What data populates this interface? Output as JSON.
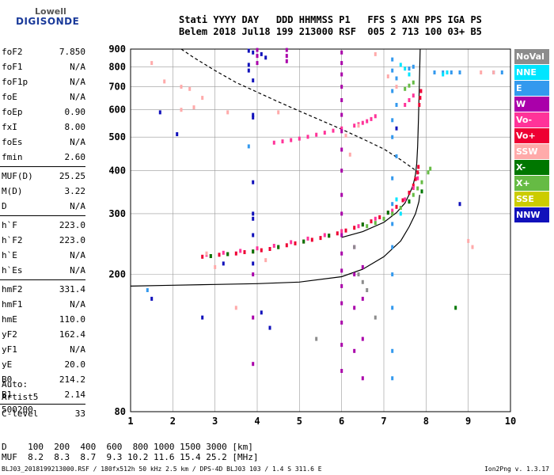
{
  "logo": {
    "line1": "Lowell",
    "line2": "DIGISONDE"
  },
  "header": {
    "line1": "Stati YYYY DAY   DDD HHMMSS P1   FFS S AXN PPS IGA PS",
    "line2": "Belem 2018 Jul18 199 213000 RSF  005 2 713 100 03+ B5"
  },
  "params": [
    {
      "group": [
        {
          "label": "foF2",
          "value": "7.850"
        },
        {
          "label": "foF1",
          "value": "N/A"
        },
        {
          "label": "foF1p",
          "value": "N/A"
        },
        {
          "label": "foE",
          "value": "N/A"
        },
        {
          "label": "foEp",
          "value": "0.90"
        },
        {
          "label": "fxI",
          "value": "8.00"
        },
        {
          "label": "foEs",
          "value": "N/A"
        },
        {
          "label": "fmin",
          "value": "2.60"
        }
      ]
    },
    {
      "group": [
        {
          "label": "MUF(D)",
          "value": "25.25"
        },
        {
          "label": "M(D)",
          "value": "3.22"
        },
        {
          "label": "D",
          "value": "N/A"
        }
      ]
    },
    {
      "group": [
        {
          "label": "h`F",
          "value": "223.0"
        },
        {
          "label": "h`F2",
          "value": "223.0"
        },
        {
          "label": "h`E",
          "value": "N/A"
        },
        {
          "label": "h`Es",
          "value": "N/A"
        }
      ]
    },
    {
      "group": [
        {
          "label": "hmF2",
          "value": "331.4"
        },
        {
          "label": "hmF1",
          "value": "N/A"
        },
        {
          "label": "hmE",
          "value": "110.0"
        },
        {
          "label": "yF2",
          "value": "162.4"
        },
        {
          "label": "yF1",
          "value": "N/A"
        },
        {
          "label": "yE",
          "value": "20.0"
        },
        {
          "label": "B0",
          "value": "214.2"
        },
        {
          "label": "B1",
          "value": "2.14"
        }
      ]
    },
    {
      "group": [
        {
          "label": "C-level",
          "value": "33"
        }
      ]
    }
  ],
  "auto": {
    "line1": "Auto:",
    "line2": "Artist5",
    "line3": "500200"
  },
  "legend": [
    {
      "name": "NoVal",
      "color": "#8c8c8c"
    },
    {
      "name": "NNE",
      "color": "#00e5ff"
    },
    {
      "name": "E",
      "color": "#3399ee"
    },
    {
      "name": "W",
      "color": "#aa00aa"
    },
    {
      "name": "Vo-",
      "color": "#ff3399"
    },
    {
      "name": "Vo+",
      "color": "#ee0033"
    },
    {
      "name": "SSW",
      "color": "#ffaaaa"
    },
    {
      "name": "X-",
      "color": "#007700"
    },
    {
      "name": "X+",
      "color": "#66bb44"
    },
    {
      "name": "SSE",
      "color": "#cccc00"
    },
    {
      "name": "NNW",
      "color": "#1111bb"
    }
  ],
  "table": {
    "row1": "D    100  200  400  600  800 1000 1500 3000 [km]",
    "row2": "MUF  8.2  8.3  8.7  9.3 10.2 11.6 15.4 25.2 [MHz]"
  },
  "footer": {
    "left": "BLJ03_2018199213000.RSF / 180fx512h 50 kHz 2.5 km / DPS-4D BLJ03 103 / 1.4 S 311.6 E",
    "right": "Ion2Png v. 1.3.17"
  },
  "chart_data": {
    "type": "scatter",
    "title": "",
    "xlabel": "",
    "ylabel": "",
    "xlim": [
      1,
      10
    ],
    "ylim": [
      80,
      900
    ],
    "yscale": "log",
    "x_ticks": [
      1,
      2,
      3,
      4,
      5,
      6,
      7,
      8,
      9,
      10
    ],
    "y_ticks": [
      80,
      200,
      300,
      400,
      500,
      600,
      700,
      800,
      900
    ],
    "grid": true,
    "legend_placement": "right",
    "series": [
      {
        "key": "ordinary",
        "color": "#ee0033",
        "points": [
          [
            2.7,
            225
          ],
          [
            2.9,
            226
          ],
          [
            3.1,
            228
          ],
          [
            3.3,
            229
          ],
          [
            3.5,
            230
          ],
          [
            3.7,
            232
          ],
          [
            3.9,
            233
          ],
          [
            4.1,
            235
          ],
          [
            4.3,
            237
          ],
          [
            4.5,
            240
          ],
          [
            4.7,
            243
          ],
          [
            4.9,
            246
          ],
          [
            5.1,
            249
          ],
          [
            5.3,
            252
          ],
          [
            5.5,
            255
          ],
          [
            5.7,
            259
          ],
          [
            5.9,
            263
          ],
          [
            6.1,
            268
          ],
          [
            6.3,
            273
          ],
          [
            6.5,
            279
          ],
          [
            6.7,
            285
          ],
          [
            6.9,
            293
          ],
          [
            7.1,
            302
          ],
          [
            7.3,
            314
          ],
          [
            7.45,
            328
          ],
          [
            7.6,
            345
          ],
          [
            7.7,
            362
          ],
          [
            7.75,
            378
          ],
          [
            7.8,
            395
          ],
          [
            7.82,
            410
          ],
          [
            7.84,
            620
          ],
          [
            7.86,
            650
          ],
          [
            7.88,
            680
          ]
        ]
      },
      {
        "key": "vo_minus",
        "color": "#ff3399",
        "points": [
          [
            2.8,
            228
          ],
          [
            3.2,
            231
          ],
          [
            3.6,
            234
          ],
          [
            4.0,
            238
          ],
          [
            4.4,
            242
          ],
          [
            4.8,
            248
          ],
          [
            5.2,
            254
          ],
          [
            5.6,
            260
          ],
          [
            6.0,
            267
          ],
          [
            6.4,
            276
          ],
          [
            6.8,
            290
          ],
          [
            7.2,
            306
          ],
          [
            7.5,
            330
          ],
          [
            7.7,
            356
          ],
          [
            7.8,
            380
          ],
          [
            7.5,
            620
          ],
          [
            7.6,
            640
          ],
          [
            7.7,
            660
          ]
        ]
      },
      {
        "key": "x_mode",
        "color": "#66bb44",
        "points": [
          [
            6.6,
            276
          ],
          [
            6.8,
            282
          ],
          [
            7.0,
            290
          ],
          [
            7.2,
            300
          ],
          [
            7.4,
            312
          ],
          [
            7.6,
            326
          ],
          [
            7.7,
            340
          ],
          [
            7.8,
            355
          ],
          [
            7.9,
            370
          ],
          [
            8.05,
            395
          ],
          [
            8.1,
            405
          ],
          [
            7.5,
            690
          ],
          [
            7.6,
            705
          ],
          [
            7.7,
            720
          ]
        ]
      },
      {
        "key": "x_minus",
        "color": "#007700",
        "points": [
          [
            2.9,
            226
          ],
          [
            3.3,
            229
          ],
          [
            3.9,
            233
          ],
          [
            4.5,
            240
          ],
          [
            5.1,
            249
          ],
          [
            5.7,
            259
          ],
          [
            6.5,
            279
          ],
          [
            7.1,
            302
          ],
          [
            7.6,
            325
          ],
          [
            7.9,
            348
          ],
          [
            8.7,
            160
          ]
        ]
      },
      {
        "key": "second_hop",
        "color": "#ff3399",
        "points": [
          [
            4.4,
            482
          ],
          [
            4.6,
            486
          ],
          [
            4.8,
            490
          ],
          [
            5.0,
            495
          ],
          [
            5.2,
            501
          ],
          [
            5.4,
            508
          ],
          [
            5.6,
            515
          ],
          [
            5.8,
            522
          ],
          [
            6.0,
            530
          ],
          [
            6.3,
            540
          ],
          [
            6.4,
            545
          ],
          [
            6.5,
            550
          ],
          [
            6.6,
            556
          ],
          [
            6.7,
            564
          ],
          [
            6.8,
            575
          ]
        ]
      },
      {
        "key": "west",
        "color": "#aa00aa",
        "points": [
          [
            4.0,
            895
          ],
          [
            4.0,
            860
          ],
          [
            4.0,
            820
          ],
          [
            6.0,
            880
          ],
          [
            6.0,
            820
          ],
          [
            6.0,
            760
          ],
          [
            6.0,
            700
          ],
          [
            6.0,
            640
          ],
          [
            6.0,
            580
          ],
          [
            6.0,
            520
          ],
          [
            6.0,
            460
          ],
          [
            6.0,
            400
          ],
          [
            6.0,
            340
          ],
          [
            6.0,
            300
          ],
          [
            6.0,
            260
          ],
          [
            6.0,
            230
          ],
          [
            6.0,
            205
          ],
          [
            6.0,
            185
          ],
          [
            6.0,
            165
          ],
          [
            6.0,
            145
          ],
          [
            6.0,
            125
          ],
          [
            6.0,
            105
          ],
          [
            6.3,
            240
          ],
          [
            6.3,
            200
          ],
          [
            6.3,
            160
          ],
          [
            6.3,
            120
          ],
          [
            6.5,
            210
          ],
          [
            6.5,
            170
          ],
          [
            6.5,
            130
          ],
          [
            6.5,
            100
          ],
          [
            3.9,
            200
          ],
          [
            3.9,
            150
          ],
          [
            3.9,
            110
          ],
          [
            4.7,
            895
          ],
          [
            4.7,
            860
          ],
          [
            4.7,
            830
          ]
        ]
      },
      {
        "key": "east",
        "color": "#3399ee",
        "points": [
          [
            7.2,
            840
          ],
          [
            7.2,
            780
          ],
          [
            7.3,
            740
          ],
          [
            7.2,
            680
          ],
          [
            7.3,
            620
          ],
          [
            7.2,
            560
          ],
          [
            7.2,
            500
          ],
          [
            7.3,
            440
          ],
          [
            7.2,
            380
          ],
          [
            7.2,
            320
          ],
          [
            7.2,
            280
          ],
          [
            7.2,
            240
          ],
          [
            7.2,
            200
          ],
          [
            7.2,
            160
          ],
          [
            7.2,
            120
          ],
          [
            7.2,
            100
          ],
          [
            8.2,
            770
          ],
          [
            8.4,
            770
          ],
          [
            8.6,
            770
          ],
          [
            8.8,
            770
          ],
          [
            9.6,
            770
          ],
          [
            9.8,
            770
          ],
          [
            7.6,
            790
          ],
          [
            7.7,
            800
          ],
          [
            1.4,
            180
          ],
          [
            3.8,
            470
          ]
        ]
      },
      {
        "key": "south_west",
        "color": "#ffaaaa",
        "points": [
          [
            1.5,
            820
          ],
          [
            1.8,
            725
          ],
          [
            2.2,
            700
          ],
          [
            2.4,
            690
          ],
          [
            2.7,
            650
          ],
          [
            2.5,
            610
          ],
          [
            2.2,
            600
          ],
          [
            3.3,
            590
          ],
          [
            4.5,
            590
          ],
          [
            6.4,
            540
          ],
          [
            6.1,
            505
          ],
          [
            6.2,
            445
          ],
          [
            3.0,
            210
          ],
          [
            3.5,
            160
          ],
          [
            4.2,
            220
          ],
          [
            2.8,
            230
          ],
          [
            9.0,
            250
          ],
          [
            9.1,
            240
          ],
          [
            9.6,
            770
          ],
          [
            9.3,
            770
          ],
          [
            7.1,
            750
          ],
          [
            7.3,
            700
          ],
          [
            6.8,
            870
          ]
        ]
      },
      {
        "key": "nnw",
        "color": "#1111bb",
        "points": [
          [
            3.8,
            890
          ],
          [
            3.9,
            880
          ],
          [
            4.1,
            870
          ],
          [
            4.2,
            850
          ],
          [
            3.8,
            810
          ],
          [
            3.8,
            780
          ],
          [
            3.9,
            730
          ],
          [
            3.9,
            570
          ],
          [
            3.9,
            580
          ],
          [
            3.9,
            370
          ],
          [
            3.9,
            300
          ],
          [
            3.9,
            290
          ],
          [
            3.9,
            260
          ],
          [
            3.9,
            215
          ],
          [
            3.2,
            215
          ],
          [
            2.1,
            510
          ],
          [
            1.7,
            590
          ],
          [
            1.5,
            170
          ],
          [
            2.7,
            150
          ],
          [
            4.1,
            155
          ],
          [
            4.3,
            140
          ],
          [
            8.8,
            320
          ],
          [
            7.3,
            530
          ]
        ]
      },
      {
        "key": "nne",
        "color": "#00e5ff",
        "points": [
          [
            7.4,
            810
          ],
          [
            7.5,
            790
          ],
          [
            7.6,
            760
          ],
          [
            7.4,
            300
          ],
          [
            7.3,
            330
          ],
          [
            8.4,
            760
          ],
          [
            8.5,
            770
          ]
        ]
      },
      {
        "key": "no_value",
        "color": "#8c8c8c",
        "points": [
          [
            6.3,
            240
          ],
          [
            6.4,
            200
          ],
          [
            6.5,
            190
          ],
          [
            6.6,
            180
          ],
          [
            6.8,
            150
          ],
          [
            5.4,
            130
          ]
        ]
      }
    ],
    "profile_curve": {
      "color": "#000000",
      "points": [
        [
          1,
          185
        ],
        [
          2,
          186
        ],
        [
          3,
          187
        ],
        [
          4,
          188
        ],
        [
          5,
          190
        ],
        [
          6,
          197
        ],
        [
          6.5,
          207
        ],
        [
          7.0,
          225
        ],
        [
          7.4,
          250
        ],
        [
          7.6,
          275
        ],
        [
          7.75,
          300
        ],
        [
          7.83,
          325
        ],
        [
          7.85,
          340
        ]
      ]
    },
    "trace_curve": {
      "color": "#000000",
      "points": [
        [
          6.0,
          256
        ],
        [
          6.5,
          266
        ],
        [
          7.0,
          283
        ],
        [
          7.3,
          302
        ],
        [
          7.5,
          322
        ],
        [
          7.62,
          345
        ],
        [
          7.7,
          365
        ],
        [
          7.75,
          390
        ],
        [
          7.78,
          420
        ],
        [
          7.8,
          470
        ],
        [
          7.82,
          560
        ],
        [
          7.84,
          700
        ],
        [
          7.86,
          900
        ]
      ]
    },
    "muf_dashed_curve": {
      "color": "#000000",
      "points": [
        [
          2.2,
          900
        ],
        [
          2.5,
          850
        ],
        [
          3.0,
          780
        ],
        [
          3.5,
          720
        ],
        [
          4.0,
          675
        ],
        [
          4.5,
          633
        ],
        [
          5.0,
          595
        ],
        [
          5.5,
          560
        ],
        [
          6.0,
          527
        ],
        [
          6.5,
          494
        ],
        [
          7.0,
          462
        ],
        [
          7.4,
          430
        ],
        [
          7.7,
          405
        ],
        [
          7.85,
          392
        ]
      ]
    }
  }
}
